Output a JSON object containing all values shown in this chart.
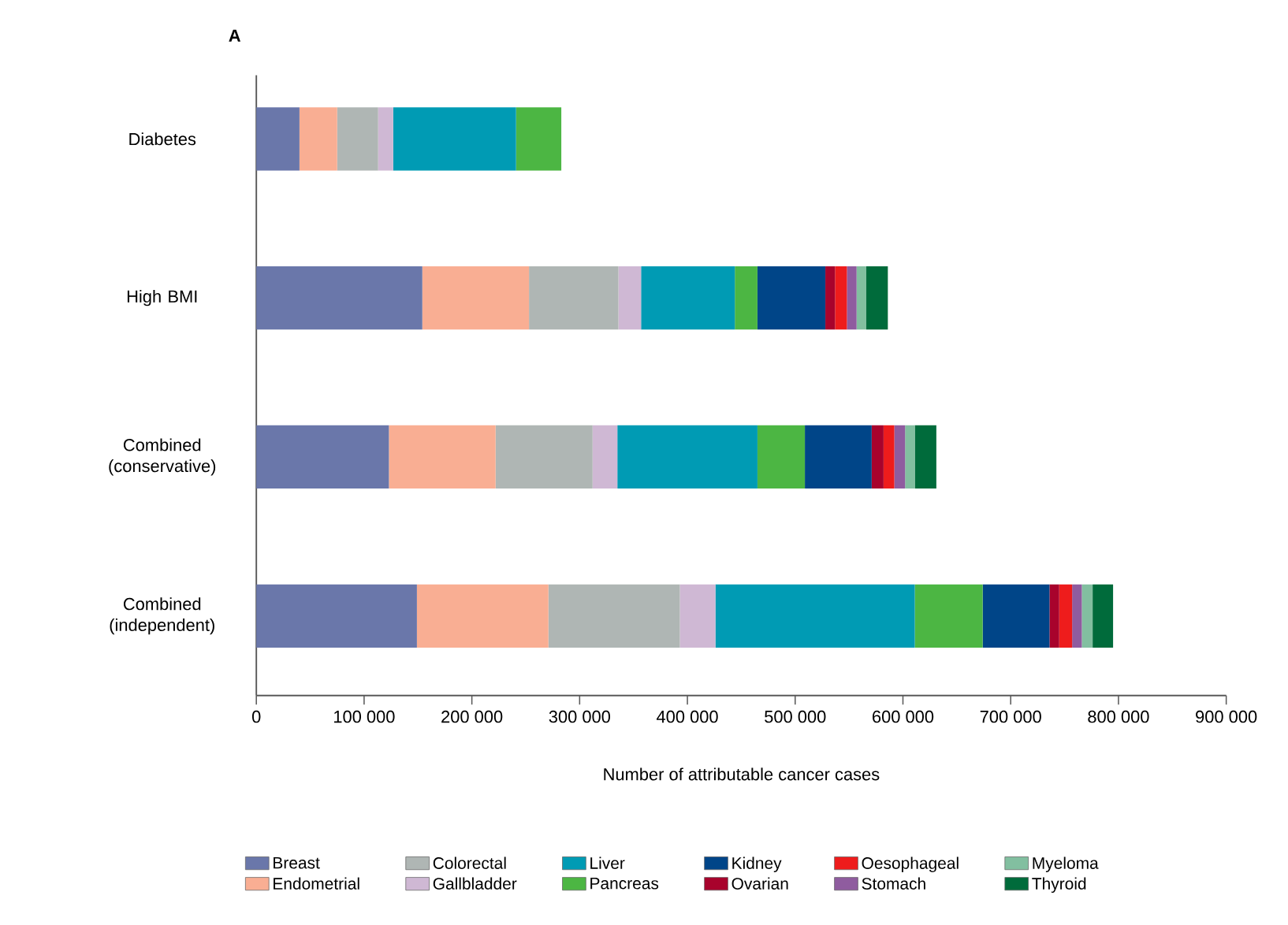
{
  "chart_data": {
    "type": "bar",
    "orientation": "horizontal",
    "stacked": true,
    "title": "A",
    "xlabel": "Number of attributable cancer cases",
    "categories": [
      "Diabetes",
      "High BMI",
      "Combined (conservative)",
      "Combined (independent)"
    ],
    "xlim": [
      0,
      900000
    ],
    "xticks": [
      0,
      {
        "value": 100000,
        "label": "100 000"
      },
      {
        "value": 200000,
        "label": "200 000"
      },
      {
        "value": 300000,
        "label": "300 000"
      },
      {
        "value": 400000,
        "label": "400 000"
      },
      {
        "value": 500000,
        "label": "500 000"
      },
      {
        "value": 600000,
        "label": "600 000"
      },
      {
        "value": 700000,
        "label": "700 000"
      },
      {
        "value": 800000,
        "label": "800 000"
      },
      {
        "value": 900000,
        "label": "900 000"
      }
    ],
    "grid": false,
    "legend": "bottom",
    "series": [
      {
        "name": "Breast",
        "color": "#6a77aa",
        "values": [
          40000,
          154000,
          123000,
          149000
        ]
      },
      {
        "name": "Endometrial",
        "color": "#f9ae93",
        "values": [
          35000,
          99000,
          99000,
          122000
        ]
      },
      {
        "name": "Colorectal",
        "color": "#afb6b4",
        "values": [
          38000,
          83000,
          90000,
          122000
        ]
      },
      {
        "name": "Gallbladder",
        "color": "#cfb8d4",
        "values": [
          14000,
          21000,
          23000,
          33000
        ]
      },
      {
        "name": "Liver",
        "color": "#009bb4",
        "values": [
          114000,
          87000,
          130000,
          185000
        ]
      },
      {
        "name": "Pancreas",
        "color": "#4cb643",
        "values": [
          42000,
          21000,
          44000,
          63000
        ]
      },
      {
        "name": "Kidney",
        "color": "#004588",
        "values": [
          0,
          63000,
          62000,
          62000
        ]
      },
      {
        "name": "Ovarian",
        "color": "#a8032c",
        "values": [
          0,
          9000,
          11000,
          9000
        ]
      },
      {
        "name": "Oesophageal",
        "color": "#ee1c1c",
        "values": [
          0,
          11000,
          10000,
          12000
        ]
      },
      {
        "name": "Stomach",
        "color": "#8f5c9f",
        "values": [
          0,
          9000,
          10000,
          9000
        ]
      },
      {
        "name": "Myeloma",
        "color": "#82bfa0",
        "values": [
          0,
          9000,
          9000,
          10000
        ]
      },
      {
        "name": "Thyroid",
        "color": "#006b3b",
        "values": [
          0,
          20000,
          20000,
          19000
        ]
      }
    ]
  }
}
